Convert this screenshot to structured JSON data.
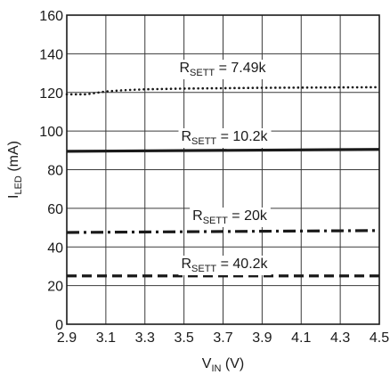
{
  "chart_data": {
    "type": "line",
    "title": "",
    "xlabel": {
      "main": "V",
      "sub": "IN",
      "unit": " (V)"
    },
    "ylabel": {
      "main": "I",
      "sub": "LED",
      "unit": " (mA)"
    },
    "xlim": [
      2.9,
      4.5
    ],
    "ylim": [
      0,
      160
    ],
    "xticks": [
      "2.9",
      "3.1",
      "3.3",
      "3.5",
      "3.7",
      "3.9",
      "4.1",
      "4.3",
      "4.5"
    ],
    "yticks": [
      "0",
      "20",
      "40",
      "60",
      "80",
      "100",
      "120",
      "140",
      "160"
    ],
    "grid": true,
    "series": [
      {
        "name": "RSETT = 7.49k",
        "label": {
          "main": "R",
          "sub": "SETT",
          "rest": " = 7.49k"
        },
        "style": "dotted",
        "x": [
          2.9,
          3.0,
          3.1,
          3.2,
          3.3,
          3.5,
          3.7,
          3.9,
          4.1,
          4.3,
          4.5
        ],
        "y": [
          119,
          119,
          120.5,
          121.2,
          121.6,
          122,
          122.2,
          122.4,
          122.5,
          122.6,
          122.7
        ]
      },
      {
        "name": "RSETT = 10.2k",
        "label": {
          "main": "R",
          "sub": "SETT",
          "rest": " = 10.2k"
        },
        "style": "solid",
        "x": [
          2.9,
          4.5
        ],
        "y": [
          89.5,
          90.5
        ]
      },
      {
        "name": "RSETT = 20k",
        "label": {
          "main": "R",
          "sub": "SETT",
          "rest": " = 20k"
        },
        "style": "dashdot",
        "x": [
          2.9,
          4.5
        ],
        "y": [
          47.5,
          48.5
        ]
      },
      {
        "name": "RSETT = 40.2k",
        "label": {
          "main": "R",
          "sub": "SETT",
          "rest": " = 40.2k"
        },
        "style": "dashed",
        "x": [
          2.9,
          4.5
        ],
        "y": [
          25,
          25
        ]
      }
    ]
  }
}
